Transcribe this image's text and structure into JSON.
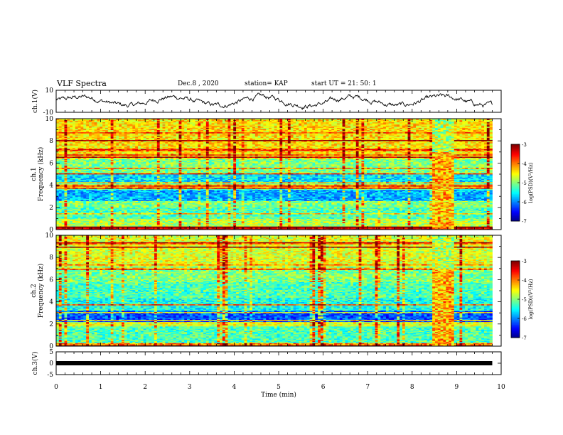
{
  "header": {
    "title": "VLF Spectra",
    "date": "Dec.8 , 2020",
    "station": "station= KAP",
    "start_ut": "start UT = 21: 50: 1"
  },
  "chart_data": [
    {
      "type": "line",
      "title": "",
      "ylabel": "ch.1(V)",
      "ylim": [
        -10,
        10
      ],
      "yticks": [
        "10",
        "-10"
      ],
      "xlim": [
        0,
        10
      ],
      "description_source": "time series trace"
    },
    {
      "type": "heatmap",
      "ylabel": "Frequency (kHz)",
      "channel_label": "ch.1",
      "ylim": [
        0,
        10
      ],
      "yticks": [
        "0",
        "2",
        "4",
        "6",
        "8",
        "10"
      ],
      "xlim": [
        0,
        10
      ],
      "colorbar": {
        "label": "log(PSD)(V²/Hz)",
        "ticks": [
          "-3",
          "-4",
          "-5",
          "-6",
          "-7"
        ],
        "range": [
          -7,
          -3
        ]
      },
      "band_levels": [
        {
          "f": [
            0.0,
            0.3
          ],
          "level": -3.3
        },
        {
          "f": [
            0.3,
            1.0
          ],
          "level": -4.8
        },
        {
          "f": [
            1.0,
            2.0
          ],
          "level": -5.2
        },
        {
          "f": [
            2.0,
            2.6
          ],
          "level": -5.0
        },
        {
          "f": [
            2.6,
            3.6
          ],
          "level": -5.8
        },
        {
          "f": [
            3.6,
            4.2
          ],
          "level": -5.2
        },
        {
          "f": [
            4.2,
            5.0
          ],
          "level": -5.6
        },
        {
          "f": [
            5.0,
            6.4
          ],
          "level": -5.0
        },
        {
          "f": [
            6.4,
            10.0
          ],
          "level": -4.4
        }
      ],
      "burst_interval_min": [
        8.4,
        8.9
      ]
    },
    {
      "type": "heatmap",
      "ylabel": "Frequency (kHz)",
      "channel_label": "ch.2",
      "ylim": [
        0,
        10
      ],
      "yticks": [
        "0",
        "2",
        "4",
        "6",
        "8",
        "10"
      ],
      "xlim": [
        0,
        10
      ],
      "colorbar": {
        "label": "log(PSD)(V²/Hz)",
        "ticks": [
          "-3",
          "-4",
          "-5",
          "-6",
          "-7"
        ],
        "range": [
          -7,
          -3
        ]
      },
      "band_levels": [
        {
          "f": [
            0.0,
            0.3
          ],
          "level": -4.0
        },
        {
          "f": [
            0.3,
            1.8
          ],
          "level": -5.2
        },
        {
          "f": [
            1.8,
            2.2
          ],
          "level": -4.6
        },
        {
          "f": [
            2.2,
            3.2
          ],
          "level": -6.2
        },
        {
          "f": [
            3.2,
            4.4
          ],
          "level": -5.4
        },
        {
          "f": [
            4.4,
            5.8
          ],
          "level": -5.2
        },
        {
          "f": [
            5.8,
            7.2
          ],
          "level": -5.0
        },
        {
          "f": [
            7.2,
            10.0
          ],
          "level": -4.6
        }
      ],
      "burst_interval_min": [
        8.4,
        8.9
      ]
    },
    {
      "type": "line",
      "ylabel": "ch.3(V)",
      "ylim": [
        -5,
        5
      ],
      "yticks": [
        "5",
        "0",
        "-5"
      ],
      "xlim": [
        0,
        10
      ],
      "xlabel": "Time (min)",
      "xticks": [
        "0",
        "1",
        "2",
        "3",
        "4",
        "5",
        "6",
        "7",
        "8",
        "9",
        "10"
      ],
      "constant_value": 0,
      "data_end_min": 9.8
    }
  ]
}
